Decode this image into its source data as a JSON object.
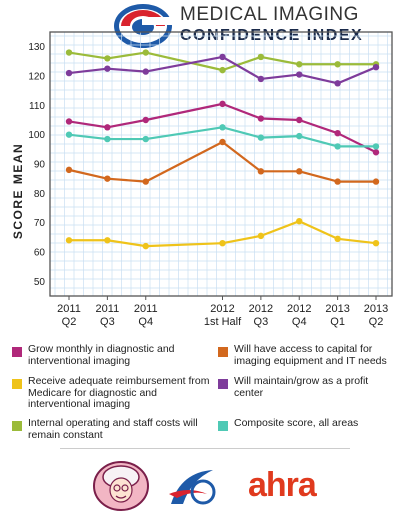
{
  "header": {
    "title_line1": "MEDICAL IMAGING",
    "title_line2": "CONFIDENCE INDEX"
  },
  "colors": {
    "background": "#ffffff",
    "grid": "#c9dff2",
    "frame": "#555555",
    "logo_red": "#d9232e",
    "logo_blue": "#1e5aa8"
  },
  "chart_data": {
    "type": "line",
    "ylabel": "SCORE MEAN",
    "ylim": [
      45,
      135
    ],
    "yticks": [
      50,
      60,
      70,
      80,
      90,
      100,
      110,
      120,
      130
    ],
    "categories": [
      [
        "2011",
        "Q2"
      ],
      [
        "2011",
        "Q3"
      ],
      [
        "2011",
        "Q4"
      ],
      [
        "2012",
        "1st Half"
      ],
      [
        "2012",
        "Q3"
      ],
      [
        "2012",
        "Q4"
      ],
      [
        "2013",
        "Q1"
      ],
      [
        "2013",
        "Q2"
      ]
    ],
    "x_positions": [
      0,
      1,
      2,
      4,
      5,
      6,
      7,
      8
    ],
    "grid": true,
    "series": [
      {
        "name": "Internal operating and staff costs will remain constant",
        "color": "#9bbb3a",
        "values": [
          128,
          126,
          128,
          122,
          126.5,
          124,
          124,
          124
        ]
      },
      {
        "name": "Will maintain/grow as a profit center",
        "color": "#7e3c9b",
        "values": [
          121,
          122.5,
          121.5,
          126.5,
          119,
          120.5,
          117.5,
          123
        ]
      },
      {
        "name": "Grow monthly in diagnostic and interventional imaging",
        "color": "#b0287a",
        "values": [
          104.5,
          102.5,
          105,
          110.5,
          105.5,
          105,
          100.5,
          94
        ]
      },
      {
        "name": "Composite score, all areas",
        "color": "#4fc9b5",
        "values": [
          100,
          98.5,
          98.5,
          102.5,
          99,
          99.5,
          96,
          96
        ]
      },
      {
        "name": "Will have access to capital for imaging equipment and IT needs",
        "color": "#d2681e",
        "values": [
          88,
          85,
          84,
          97.5,
          87.5,
          87.5,
          84,
          84
        ]
      },
      {
        "name": "Receive adequate reimbursement from Medicare for diagnostic and interventional imaging",
        "color": "#efc31a",
        "values": [
          64,
          64,
          62,
          63,
          65.5,
          70.5,
          64.5,
          63
        ]
      }
    ]
  },
  "legend": [
    {
      "label": "Grow monthly in diagnostic and interventional imaging",
      "color": "#b0287a"
    },
    {
      "label": "Will have access to capital for imaging equipment and IT needs",
      "color": "#d2681e"
    },
    {
      "label": "Receive adequate reimbursement from Medicare for diagnostic and interventional imaging",
      "color": "#efc31a"
    },
    {
      "label": "Will maintain/grow as a profit center",
      "color": "#7e3c9b"
    },
    {
      "label": "Internal operating and staff costs will remain constant",
      "color": "#9bbb3a"
    },
    {
      "label": "Composite score, all areas",
      "color": "#4fc9b5"
    }
  ],
  "footer": {
    "logo_text": "ahra",
    "logo_text_color": "#e03a1e"
  }
}
